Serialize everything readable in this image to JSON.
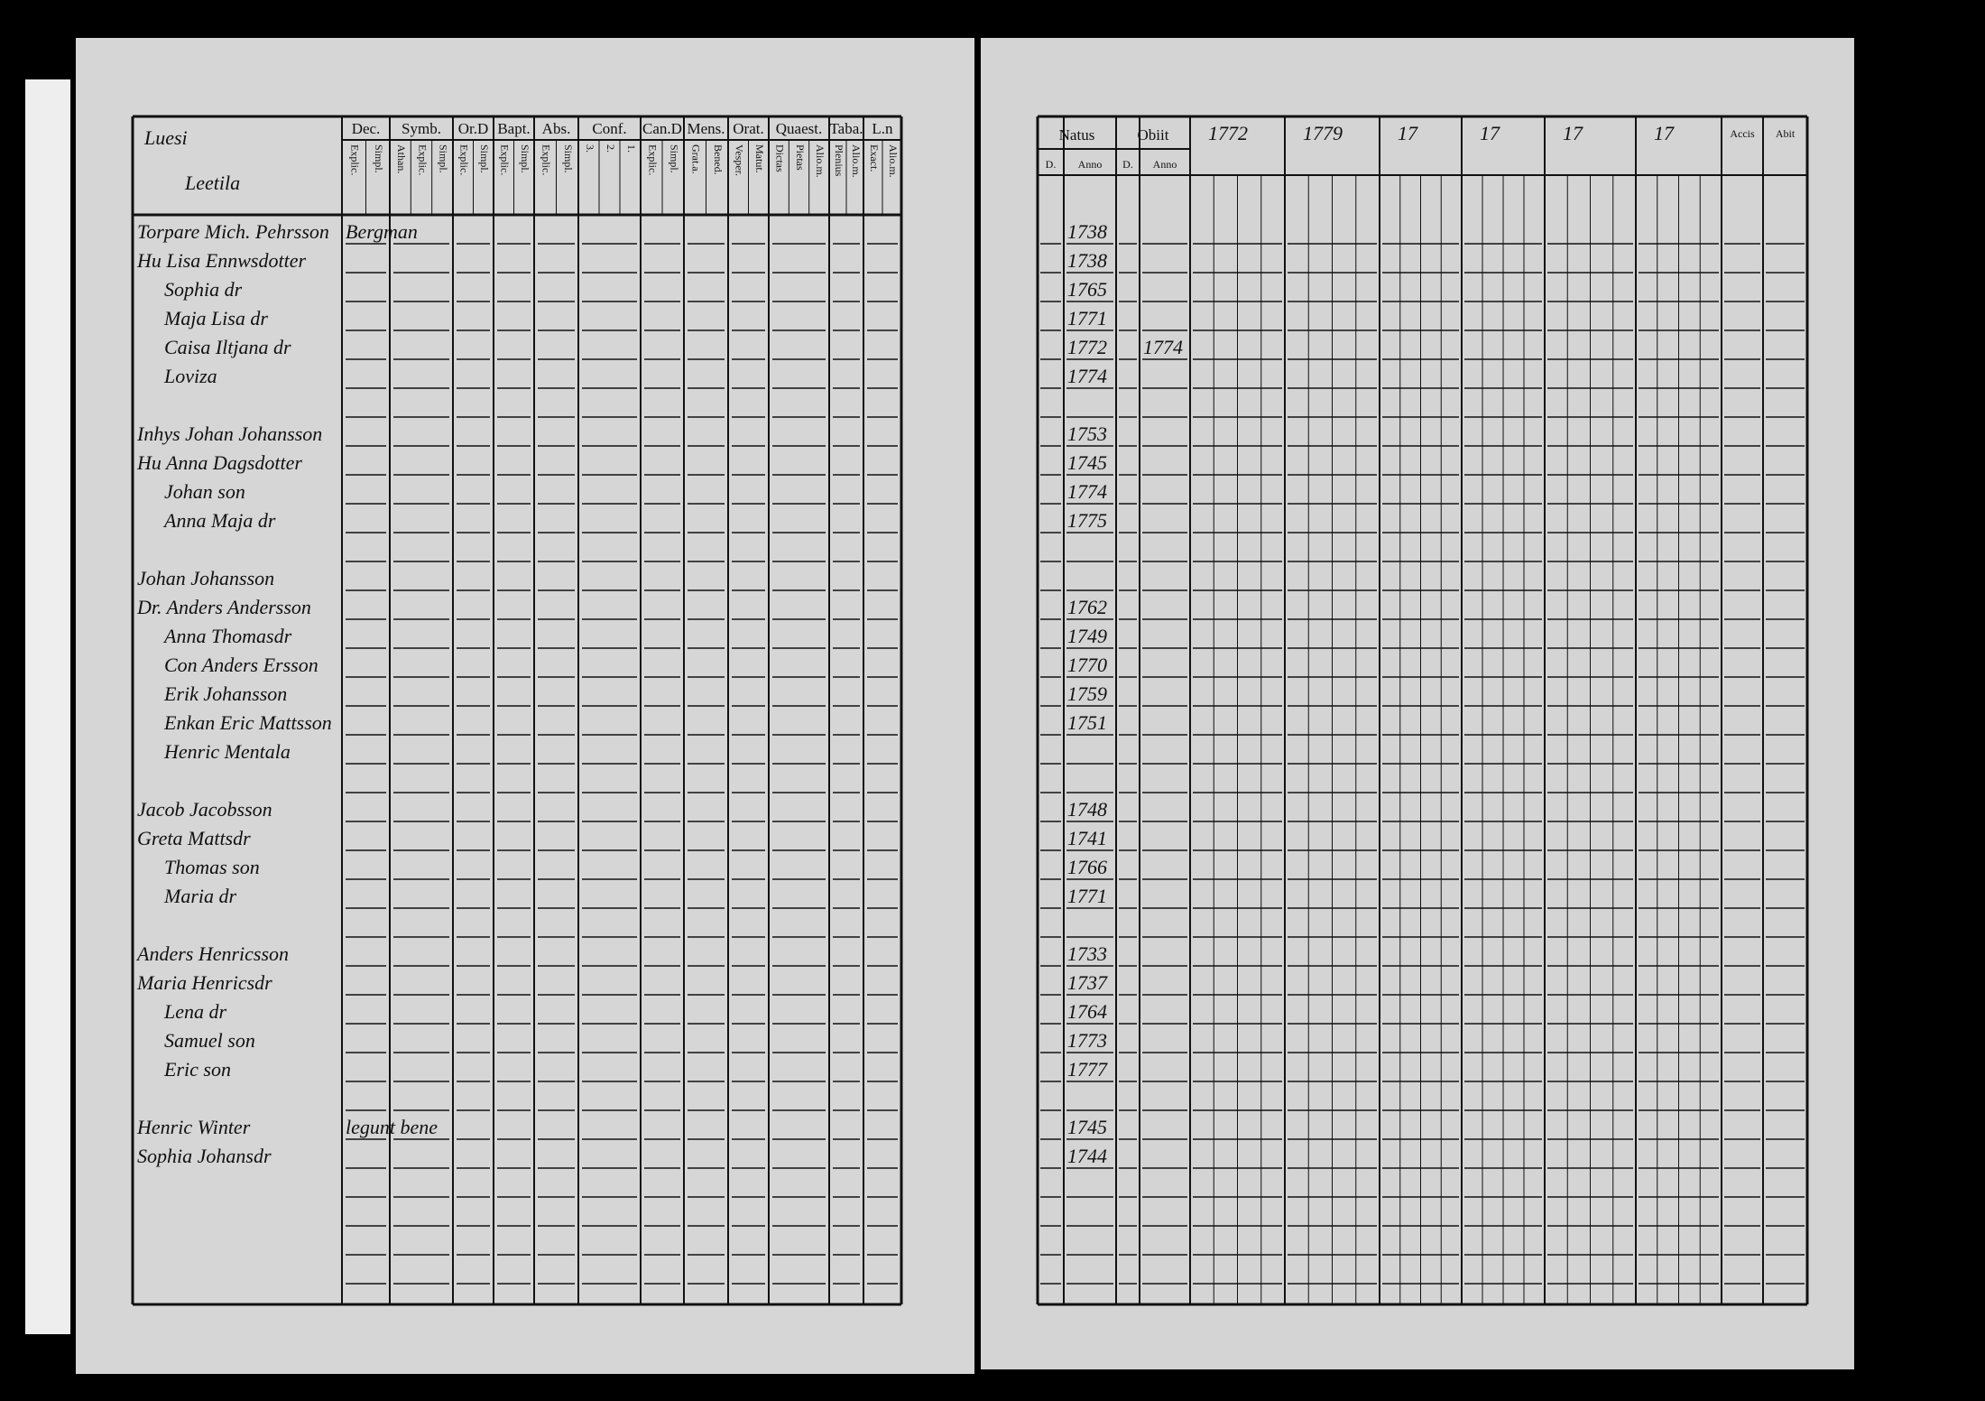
{
  "left_page": {
    "title": [
      "Luesi",
      "Leetila"
    ],
    "columns": [
      {
        "label": "Dec.",
        "subs": [
          "Explic.",
          "Simpl."
        ]
      },
      {
        "label": "Symb.",
        "subs": [
          "Athan.",
          "Explic.",
          "Simpl."
        ]
      },
      {
        "label": "Or.D",
        "subs": [
          "Explic.",
          "Simpl."
        ]
      },
      {
        "label": "Bapt.",
        "subs": [
          "Explic.",
          "Simpl."
        ]
      },
      {
        "label": "Abs.",
        "subs": [
          "Explic.",
          "Simpl."
        ]
      },
      {
        "label": "Conf.",
        "subs": [
          "3.",
          "2.",
          "1."
        ]
      },
      {
        "label": "Can.D",
        "subs": [
          "Explic.",
          "Simpl."
        ]
      },
      {
        "label": "Mens.",
        "subs": [
          "Grat.a.",
          "Bened."
        ]
      },
      {
        "label": "Orat.",
        "subs": [
          "Vesper.",
          "Matut."
        ]
      },
      {
        "label": "Quaest.",
        "subs": [
          "Dictas",
          "Pietas",
          "Alio.m."
        ]
      },
      {
        "label": "Taba.",
        "subs": [
          "Plenius",
          "Alio.m."
        ]
      },
      {
        "label": "L.n",
        "subs": [
          "Exact.",
          "Alio.m."
        ]
      }
    ]
  },
  "right_page": {
    "natus": {
      "label": "Natus",
      "subs": [
        "D.",
        "Anno"
      ]
    },
    "obiit": {
      "label": "Obiit",
      "subs": [
        "D.",
        "Anno"
      ]
    },
    "years": [
      "1772",
      "1779",
      "17",
      "17",
      "17",
      "17"
    ],
    "accis": "Accis",
    "abit": "Abit"
  },
  "families": [
    {
      "members": [
        {
          "name": "Torpare Mich. Pehrsson",
          "note": "Bergman",
          "born": "1738"
        },
        {
          "name": "Hu Lisa Ennwsdotter",
          "born": "1738"
        },
        {
          "name": "Sophia dr",
          "born": "1765"
        },
        {
          "name": "Maja Lisa dr",
          "born": "1771"
        },
        {
          "name": "Caisa Iltjana dr",
          "born": "1772",
          "died": "1774"
        },
        {
          "name": "Loviza",
          "born": "1774"
        }
      ]
    },
    {
      "members": [
        {
          "name": "Inhys Johan Johansson",
          "born": "1753"
        },
        {
          "name": "Hu Anna Dagsdotter",
          "born": "1745"
        },
        {
          "name": "Johan son",
          "born": "1774"
        },
        {
          "name": "Anna Maja dr",
          "born": "1775"
        }
      ]
    },
    {
      "members": [
        {
          "name": "Johan Johansson"
        },
        {
          "name": "Dr. Anders Andersson",
          "born": "1762"
        },
        {
          "name": "Anna Thomasdr",
          "born": "1749"
        },
        {
          "name": "Con Anders Ersson",
          "born": "1770"
        },
        {
          "name": "Erik Johansson",
          "born": "1759"
        },
        {
          "name": "Enkan Eric Mattsson",
          "born": "1751"
        },
        {
          "name": "Henric Mentala"
        }
      ]
    },
    {
      "members": [
        {
          "name": "Jacob Jacobsson",
          "born": "1748"
        },
        {
          "name": "Greta Mattsdr",
          "born": "1741"
        },
        {
          "name": "Thomas son",
          "born": "1766"
        },
        {
          "name": "Maria dr",
          "born": "1771"
        }
      ]
    },
    {
      "members": [
        {
          "name": "Anders Henricsson",
          "born": "1733"
        },
        {
          "name": "Maria Henricsdr",
          "born": "1737"
        },
        {
          "name": "Lena dr",
          "born": "1764"
        },
        {
          "name": "Samuel son",
          "born": "1773"
        },
        {
          "name": "Eric son",
          "born": "1777"
        }
      ]
    },
    {
      "members": [
        {
          "name": "Henric Winter",
          "note": "legunt bene",
          "born": "1745"
        },
        {
          "name": "Sophia Johansdr",
          "born": "1744"
        }
      ]
    }
  ]
}
